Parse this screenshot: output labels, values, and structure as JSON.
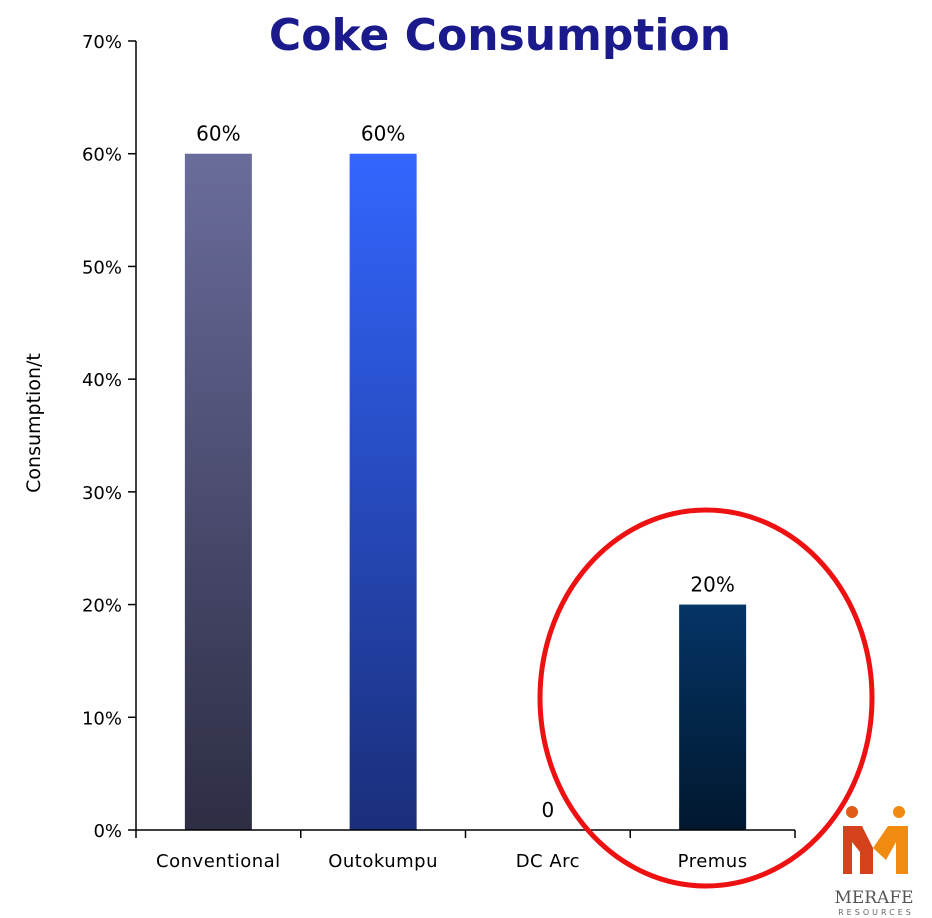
{
  "chart_data": {
    "type": "bar",
    "title": "Coke Consumption",
    "ylabel": "Consumption/t",
    "xlabel": "",
    "categories": [
      "Conventional",
      "Outokumpu",
      "DC Arc",
      "Premus"
    ],
    "values": [
      60,
      60,
      0,
      20
    ],
    "value_labels": [
      "60%",
      "60%",
      "0",
      "20%"
    ],
    "y_ticks": [
      "0%",
      "10%",
      "20%",
      "30%",
      "40%",
      "50%",
      "60%",
      "70%"
    ],
    "ylim": [
      0,
      70
    ],
    "grid": false,
    "highlight": "Premus",
    "colors": {
      "Conventional": [
        "#6a6c9c",
        "#2d2d44"
      ],
      "Outokumpu": [
        "#3366ff",
        "#1a2e7a"
      ],
      "DC Arc": [
        "#333333",
        "#111111"
      ],
      "Premus": [
        "#053466",
        "#01182e"
      ],
      "highlight_ring": "#ee1111",
      "title": "#1a1a8c"
    }
  },
  "logo": {
    "name": "MERAFE",
    "sub": "RESOURCES"
  }
}
